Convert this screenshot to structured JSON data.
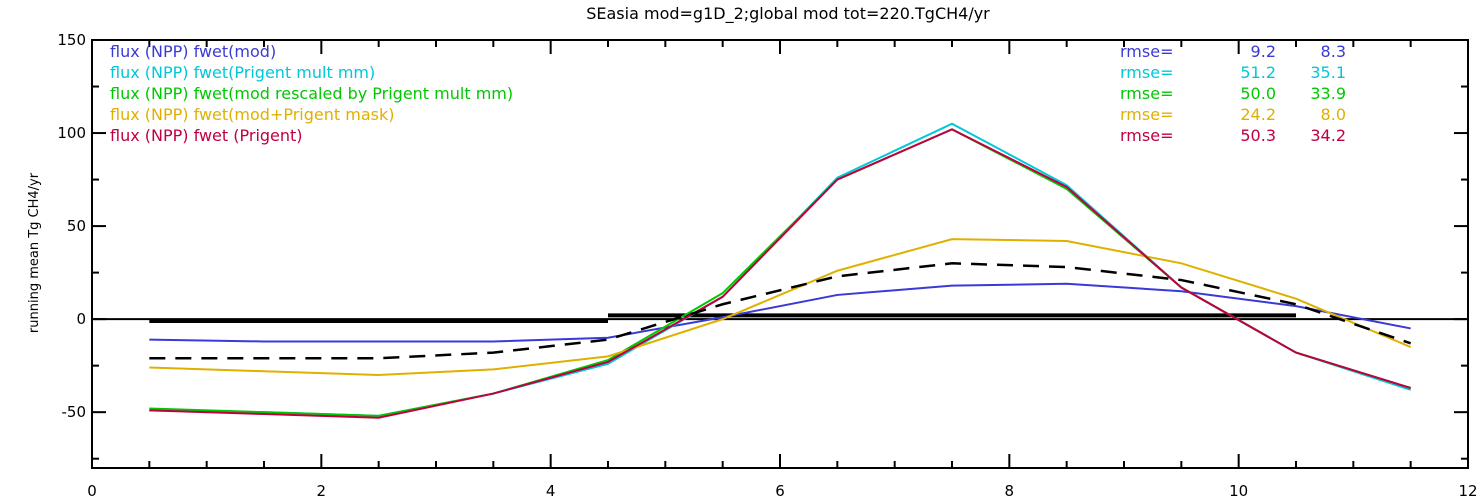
{
  "chart_data": {
    "type": "line",
    "title": "SEasia mod=g1D_2;global mod tot=220.TgCH4/yr",
    "xlabel": "",
    "ylabel": "running mean Tg CH4/yr",
    "xlim": [
      0,
      12
    ],
    "ylim": [
      -80,
      150
    ],
    "xticks": [
      0,
      2,
      4,
      6,
      8,
      10,
      12
    ],
    "yticks": [
      -50,
      0,
      50,
      100,
      150
    ],
    "ytick_labels": [
      "-50",
      "0",
      "50",
      "100",
      "150"
    ],
    "grid": false,
    "legend_position": "top-left",
    "rmse_label": "rmse=",
    "series": [
      {
        "name": "flux (NPP) fwet(mod)",
        "color": "#3a3ad6",
        "dash": "solid",
        "rmse": [
          "9.2",
          "8.3"
        ],
        "x": [
          0.5,
          1.5,
          2.5,
          3.5,
          4.5,
          5.5,
          6.5,
          7.5,
          8.5,
          9.5,
          10.5,
          11.5
        ],
        "y": [
          -11,
          -12,
          -12,
          -12,
          -10,
          1,
          13,
          18,
          19,
          15,
          7,
          -5
        ]
      },
      {
        "name": "flux (NPP) fwet(Prigent mult mm)",
        "color": "#00c8d8",
        "dash": "solid",
        "rmse": [
          "51.2",
          "35.1"
        ],
        "x": [
          0.5,
          1.5,
          2.5,
          3.5,
          4.5,
          5.5,
          6.5,
          7.5,
          8.5,
          9.5,
          10.5,
          11.5
        ],
        "y": [
          -49,
          -50,
          -52,
          -40,
          -24,
          12,
          76,
          105,
          72,
          17,
          -18,
          -38
        ]
      },
      {
        "name": "flux (NPP) fwet(mod rescaled by Prigent mult mm)",
        "color": "#00c800",
        "dash": "solid",
        "rmse": [
          "50.0",
          "33.9"
        ],
        "x": [
          0.5,
          1.5,
          2.5,
          3.5,
          4.5,
          5.5,
          6.5,
          7.5,
          8.5,
          9.5,
          10.5,
          11.5
        ],
        "y": [
          -48,
          -50,
          -52,
          -40,
          -22,
          14,
          75,
          102,
          70,
          17,
          -18,
          -37
        ]
      },
      {
        "name": "flux (NPP) fwet(mod+Prigent mask)",
        "color": "#e0b000",
        "dash": "solid",
        "rmse": [
          "24.2",
          "8.0"
        ],
        "x": [
          0.5,
          1.5,
          2.5,
          3.5,
          4.5,
          5.5,
          6.5,
          7.5,
          8.5,
          9.5,
          10.5,
          11.5
        ],
        "y": [
          -26,
          -28,
          -30,
          -27,
          -20,
          0,
          26,
          43,
          42,
          30,
          11,
          -15
        ]
      },
      {
        "name": "flux (NPP) fwet (Prigent)",
        "color": "#c00040",
        "dash": "solid",
        "rmse": [
          "50.3",
          "34.2"
        ],
        "x": [
          0.5,
          1.5,
          2.5,
          3.5,
          4.5,
          5.5,
          6.5,
          7.5,
          8.5,
          9.5,
          10.5,
          11.5
        ],
        "y": [
          -49,
          -51,
          -53,
          -40,
          -23,
          12,
          75,
          102,
          71,
          17,
          -18,
          -37
        ]
      },
      {
        "color": "#000000",
        "dash": "dashed",
        "x": [
          0.5,
          1.5,
          2.5,
          3.5,
          4.5,
          5.5,
          6.5,
          7.5,
          8.5,
          9.5,
          10.5,
          11.5
        ],
        "y": [
          -21,
          -21,
          -21,
          -18,
          -11,
          8,
          23,
          30,
          28,
          21,
          8,
          -13
        ]
      }
    ],
    "reference_lines": [
      {
        "color": "#000000",
        "x": [
          0.5,
          4.5
        ],
        "y": [
          -1,
          -1
        ]
      },
      {
        "color": "#000000",
        "x": [
          4.5,
          10.5
        ],
        "y": [
          2,
          2
        ]
      }
    ]
  }
}
